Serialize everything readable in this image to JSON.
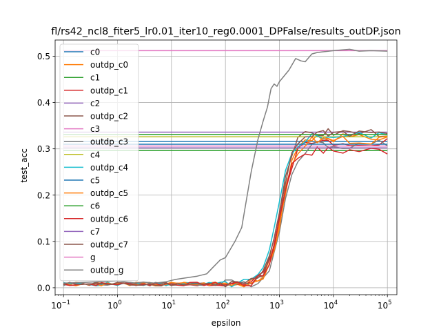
{
  "chart_data": {
    "type": "line",
    "title": "fl/rs42_ncl8_fiter5_lr0.01_iter10_reg0.0001_DPFalse/results_outDP.json",
    "xlabel": "epsilon",
    "ylabel": "test_acc",
    "xscale": "log",
    "xlim": [
      0.07,
      150000
    ],
    "ylim": [
      -0.015,
      0.535
    ],
    "grid": true,
    "legend_position": "upper-left",
    "x_ticks": [
      {
        "value": 0.1,
        "base": "10",
        "exp": "−1"
      },
      {
        "value": 1,
        "base": "10",
        "exp": "0"
      },
      {
        "value": 10,
        "base": "10",
        "exp": "1"
      },
      {
        "value": 100,
        "base": "10",
        "exp": "2"
      },
      {
        "value": 1000,
        "base": "10",
        "exp": "3"
      },
      {
        "value": 10000,
        "base": "10",
        "exp": "4"
      },
      {
        "value": 100000,
        "base": "10",
        "exp": "5"
      }
    ],
    "y_ticks": [
      {
        "value": 0.0,
        "label": "0.0"
      },
      {
        "value": 0.1,
        "label": "0.1"
      },
      {
        "value": 0.2,
        "label": "0.2"
      },
      {
        "value": 0.3,
        "label": "0.3"
      },
      {
        "value": 0.4,
        "label": "0.4"
      },
      {
        "value": 0.5,
        "label": "0.5"
      }
    ],
    "series": [
      {
        "name": "c0",
        "color": "#1f77b4",
        "kind": "constant",
        "value": 0.316
      },
      {
        "name": "outdp_c0",
        "color": "#ff7f0e",
        "kind": "curve",
        "final": 0.325,
        "mid": 1100,
        "width": 0.55,
        "seed": 1
      },
      {
        "name": "c1",
        "color": "#2ca02c",
        "kind": "constant",
        "value": 0.296
      },
      {
        "name": "outdp_c1",
        "color": "#d62728",
        "kind": "curve",
        "final": 0.316,
        "mid": 1050,
        "width": 0.55,
        "seed": 2
      },
      {
        "name": "c2",
        "color": "#9467bd",
        "kind": "constant",
        "value": 0.336
      },
      {
        "name": "outdp_c2",
        "color": "#8c564b",
        "kind": "curve",
        "final": 0.336,
        "mid": 1000,
        "width": 0.55,
        "seed": 3
      },
      {
        "name": "c3",
        "color": "#e377c2",
        "kind": "constant",
        "value": 0.306
      },
      {
        "name": "outdp_c3",
        "color": "#7f7f7f",
        "kind": "curve",
        "final": 0.31,
        "mid": 1150,
        "width": 0.55,
        "seed": 4
      },
      {
        "name": "c4",
        "color": "#bcbd22",
        "kind": "constant",
        "value": 0.326
      },
      {
        "name": "outdp_c4",
        "color": "#17becf",
        "kind": "curve",
        "final": 0.328,
        "mid": 950,
        "width": 0.55,
        "seed": 5
      },
      {
        "name": "c5",
        "color": "#1f77b4",
        "kind": "constant",
        "value": 0.31
      },
      {
        "name": "outdp_c5",
        "color": "#ff7f0e",
        "kind": "curve",
        "final": 0.32,
        "mid": 1100,
        "width": 0.55,
        "seed": 6
      },
      {
        "name": "c6",
        "color": "#2ca02c",
        "kind": "constant",
        "value": 0.331
      },
      {
        "name": "outdp_c6",
        "color": "#d62728",
        "kind": "curve",
        "final": 0.296,
        "mid": 1000,
        "width": 0.5,
        "seed": 7
      },
      {
        "name": "c7",
        "color": "#9467bd",
        "kind": "constant",
        "value": 0.302
      },
      {
        "name": "outdp_c7",
        "color": "#8c564b",
        "kind": "curve",
        "final": 0.335,
        "mid": 1050,
        "width": 0.55,
        "seed": 8
      },
      {
        "name": "g",
        "color": "#e377c2",
        "kind": "constant",
        "value": 0.512
      },
      {
        "name": "outdp_g",
        "color": "#7f7f7f",
        "kind": "global",
        "x": [
          0.1,
          0.3,
          1,
          2,
          3,
          5,
          8,
          12,
          20,
          30,
          45,
          60,
          80,
          100,
          150,
          200,
          300,
          400,
          500,
          600,
          700,
          800,
          900,
          1000,
          1500,
          2000,
          2500,
          3000,
          4000,
          5000,
          7000,
          10000,
          20000,
          30000,
          50000,
          100000
        ],
        "y": [
          0.01,
          0.012,
          0.015,
          0.01,
          0.012,
          0.01,
          0.013,
          0.018,
          0.022,
          0.025,
          0.03,
          0.045,
          0.06,
          0.065,
          0.1,
          0.13,
          0.25,
          0.32,
          0.36,
          0.39,
          0.43,
          0.44,
          0.435,
          0.445,
          0.47,
          0.495,
          0.49,
          0.488,
          0.505,
          0.508,
          0.51,
          0.512,
          0.515,
          0.511,
          0.512,
          0.511
        ]
      }
    ]
  }
}
